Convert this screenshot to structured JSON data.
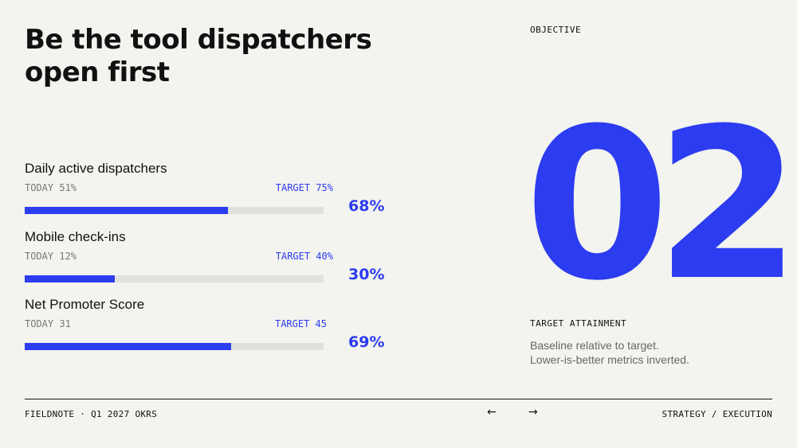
{
  "slide": {
    "title_lines": [
      "Be the tool dispatchers",
      "open first"
    ],
    "objective_label": "OBJECTIVE",
    "objective_number": "02"
  },
  "metrics": [
    {
      "name": "Daily active dispatchers",
      "today": "TODAY 51%",
      "target": "TARGET 75%",
      "attainment": "68%",
      "progress": 0.68
    },
    {
      "name": "Mobile check-ins",
      "today": "TODAY 12%",
      "target": "TARGET 40%",
      "attainment": "30%",
      "progress": 0.3
    },
    {
      "name": "Net Promoter Score",
      "today": "TODAY 31",
      "target": "TARGET 45",
      "attainment": "69%",
      "progress": 0.69
    }
  ],
  "attainment": {
    "label": "TARGET ATTAINMENT",
    "description_lines": [
      "Baseline relative to target.",
      "Lower-is-better metrics inverted."
    ]
  },
  "footer": {
    "left": "FIELDNOTE · Q1 2027 OKRS",
    "prev_glyph": "←",
    "next_glyph": "→",
    "right": "STRATEGY / EXECUTION"
  },
  "colors": {
    "accent": "#2c3cf0",
    "background": "#f3f3ef",
    "track": "#e0e0dc"
  },
  "icons": {
    "prev": "arrow-left-icon",
    "next": "arrow-right-icon"
  }
}
